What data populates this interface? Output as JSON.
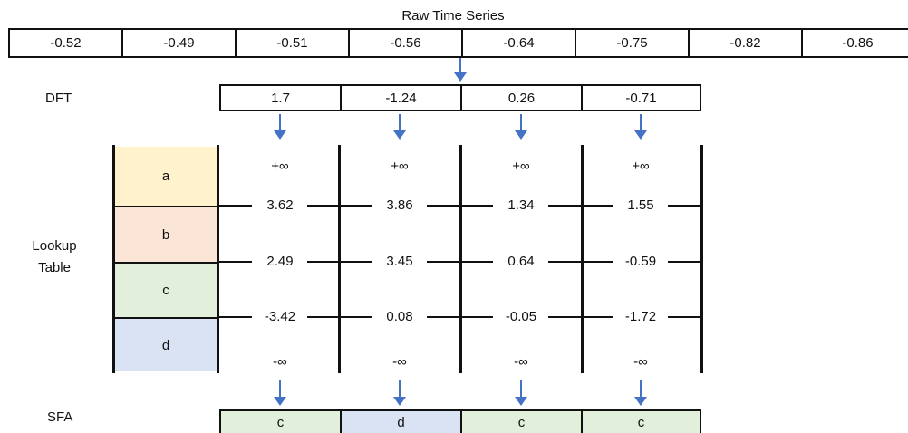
{
  "raw_time_series": {
    "title": "Raw Time Series",
    "values": [
      "-0.52",
      "-0.49",
      "-0.51",
      "-0.56",
      "-0.64",
      "-0.75",
      "-0.82",
      "-0.86"
    ]
  },
  "dft": {
    "label": "DFT",
    "values": [
      "1.7",
      "-1.24",
      "0.26",
      "-0.71"
    ]
  },
  "lookup_table": {
    "label_line1": "Lookup",
    "label_line2": "Table",
    "symbols": [
      {
        "letter": "a",
        "color": "#fff2cc"
      },
      {
        "letter": "b",
        "color": "#fbe5d6"
      },
      {
        "letter": "c",
        "color": "#e2efda"
      },
      {
        "letter": "d",
        "color": "#dae3f3"
      }
    ],
    "pos_inf": "+∞",
    "neg_inf": "-∞",
    "columns": [
      {
        "b1": "3.62",
        "b2": "2.49",
        "b3": "-3.42"
      },
      {
        "b1": "3.86",
        "b2": "3.45",
        "b3": "0.08"
      },
      {
        "b1": "1.34",
        "b2": "0.64",
        "b3": "-0.05"
      },
      {
        "b1": "1.55",
        "b2": "-0.59",
        "b3": "-1.72"
      }
    ]
  },
  "sfa": {
    "label": "SFA",
    "values": [
      {
        "letter": "c",
        "color": "#e2efda"
      },
      {
        "letter": "d",
        "color": "#dae3f3"
      },
      {
        "letter": "c",
        "color": "#e2efda"
      },
      {
        "letter": "c",
        "color": "#e2efda"
      }
    ]
  },
  "colors": {
    "arrow": "#4472c4",
    "border": "#111111"
  }
}
